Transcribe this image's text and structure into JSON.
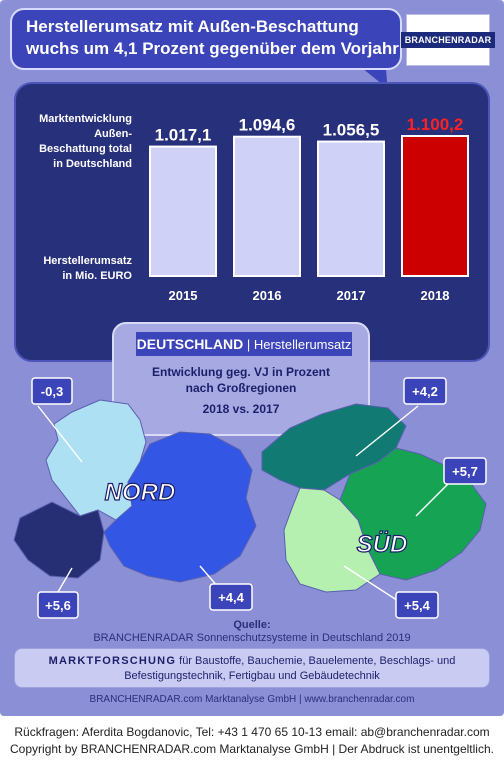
{
  "headline": {
    "line1": "Herstellerumsatz mit  Außen-Beschattung",
    "line2": "wuchs um 4,1 Prozent gegenüber dem Vorjahr"
  },
  "brand_logo_text": "BRANCHENRADAR",
  "chart_labels": {
    "market_line1": "Marktentwicklung",
    "market_line2": "Außen-",
    "market_line3": "Beschattung total",
    "market_line4": "in Deutschland",
    "unit_line1": "Herstellerumsatz",
    "unit_line2": "in Mio. EURO"
  },
  "chart_data": {
    "type": "bar",
    "categories": [
      "2015",
      "2016",
      "2017",
      "2018"
    ],
    "values": [
      1017.1,
      1094.6,
      1056.5,
      1100.2
    ],
    "value_labels": [
      "1.017,1",
      "1.094,6",
      "1.056,5",
      "1.100,2"
    ],
    "ylim": [
      0,
      1100.2
    ],
    "highlight_index": 3,
    "colors": {
      "bar": "#cfd1f7",
      "highlight": "#cc0000",
      "highlight_text": "#ff2020",
      "text": "#ffffff"
    }
  },
  "info": {
    "title_bold": "DEUTSCHLAND",
    "title_rest": "Herstellerumsatz",
    "subtitle_line1": "Entwicklung geg. VJ in Prozent",
    "subtitle_line2": "nach Großregionen",
    "years": "2018 vs. 2017"
  },
  "regions": {
    "nord": {
      "label": "NORD",
      "parts": [
        {
          "value": "-0,3",
          "color": "#aee0f4"
        },
        {
          "value": "+5,6",
          "color": "#262e74"
        },
        {
          "value": "+4,4",
          "color": "#3357e4"
        }
      ]
    },
    "sued": {
      "label": "SÜD",
      "parts": [
        {
          "value": "+4,2",
          "color": "#117a72"
        },
        {
          "value": "+5,7",
          "color": "#16a354"
        },
        {
          "value": "+5,4",
          "color": "#b6f0b0"
        }
      ]
    }
  },
  "source": {
    "label": "Quelle:",
    "text": "BRANCHENRADAR Sonnenschutzsysteme in Deutschland 2019"
  },
  "research": {
    "bold": "MARKTFORSCHUNG",
    "rest_line1": " für Baustoffe, Bauchemie, Bauelemente, Beschlags- und",
    "line2": "Befestigungstechnik, Fertigbau und Gebäudetechnik"
  },
  "poster_footer": "BRANCHENRADAR.com Marktanalyse GmbH | www.branchenradar.com",
  "captions": {
    "line1": "Rückfragen: Aferdita Bogdanovic, Tel: +43 1 470 65 10-13 email: ab@branchenradar.com",
    "line2": "Copyright by BRANCHENRADAR.com  Marktanalyse GmbH | Der Abdruck ist unentgeltlich."
  }
}
